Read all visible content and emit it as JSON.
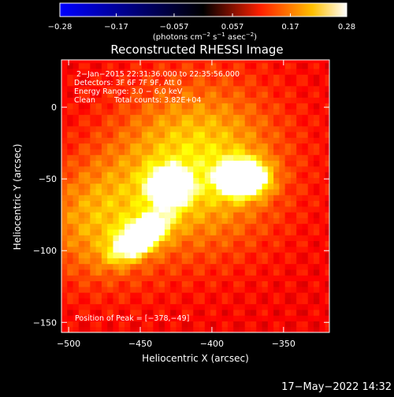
{
  "chart_data": {
    "type": "heatmap",
    "title": "Reconstructed RHESSI Image",
    "xlabel": "Heliocentric X (arcsec)",
    "ylabel": "Heliocentric Y (arcsec)",
    "xlim": [
      -505,
      -318
    ],
    "ylim": [
      -157,
      33
    ],
    "x_ticks": [
      -500,
      -450,
      -400,
      -350
    ],
    "y_ticks": [
      -150,
      -100,
      -50,
      0
    ],
    "x_tick_labels": [
      "−500",
      "−450",
      "−400",
      "−350"
    ],
    "y_tick_labels": [
      "−150",
      "−100",
      "−50",
      "0"
    ],
    "colorbar": {
      "min": -0.28,
      "max": 0.28,
      "ticks": [
        -0.28,
        -0.17,
        -0.057,
        0.057,
        0.17,
        0.28
      ],
      "tick_labels": [
        "−0.28",
        "−0.17",
        "−0.057",
        "0.057",
        "0.17",
        "0.28"
      ],
      "units_prefix": "(photons cm",
      "units_exp1": "−2",
      "units_mid": " s",
      "units_exp2": "−1",
      "units_end": " asec",
      "units_exp3": "−2",
      "units_close": ")",
      "colormap": [
        "#0000ff",
        "#000000",
        "#ff0000",
        "#ffff00",
        "#ffffff"
      ]
    },
    "sources": [
      {
        "x": -430,
        "y": -55,
        "peak": 0.27,
        "sigma_x": 9,
        "sigma_y": 8
      },
      {
        "x": -450,
        "y": -90,
        "peak": 0.25,
        "sigma_x": 14,
        "sigma_y": 7,
        "angle_deg": 35
      },
      {
        "x": -378,
        "y": -49,
        "peak": 0.28,
        "sigma_x": 11,
        "sigma_y": 8
      },
      {
        "x": -410,
        "y": -40,
        "peak": 0.12,
        "sigma_x": 40,
        "sigma_y": 40
      },
      {
        "x": -480,
        "y": -80,
        "peak": 0.08,
        "sigma_x": 30,
        "sigma_y": 30
      }
    ],
    "annotations": [
      "2−Jan−2015 22:31:36.000 to 22:35:56.000",
      "Detectors: 3F 6F 7F 9F, Att 0",
      "Energy Range: 3.0 − 6.0 keV"
    ],
    "clean_label": "Clean",
    "total_counts_label": "Total counts: 3.82E+04",
    "peak_label": "Position of Peak = [−378,−49]"
  },
  "footer": {
    "timestamp": "17−May−2022 14:32"
  }
}
